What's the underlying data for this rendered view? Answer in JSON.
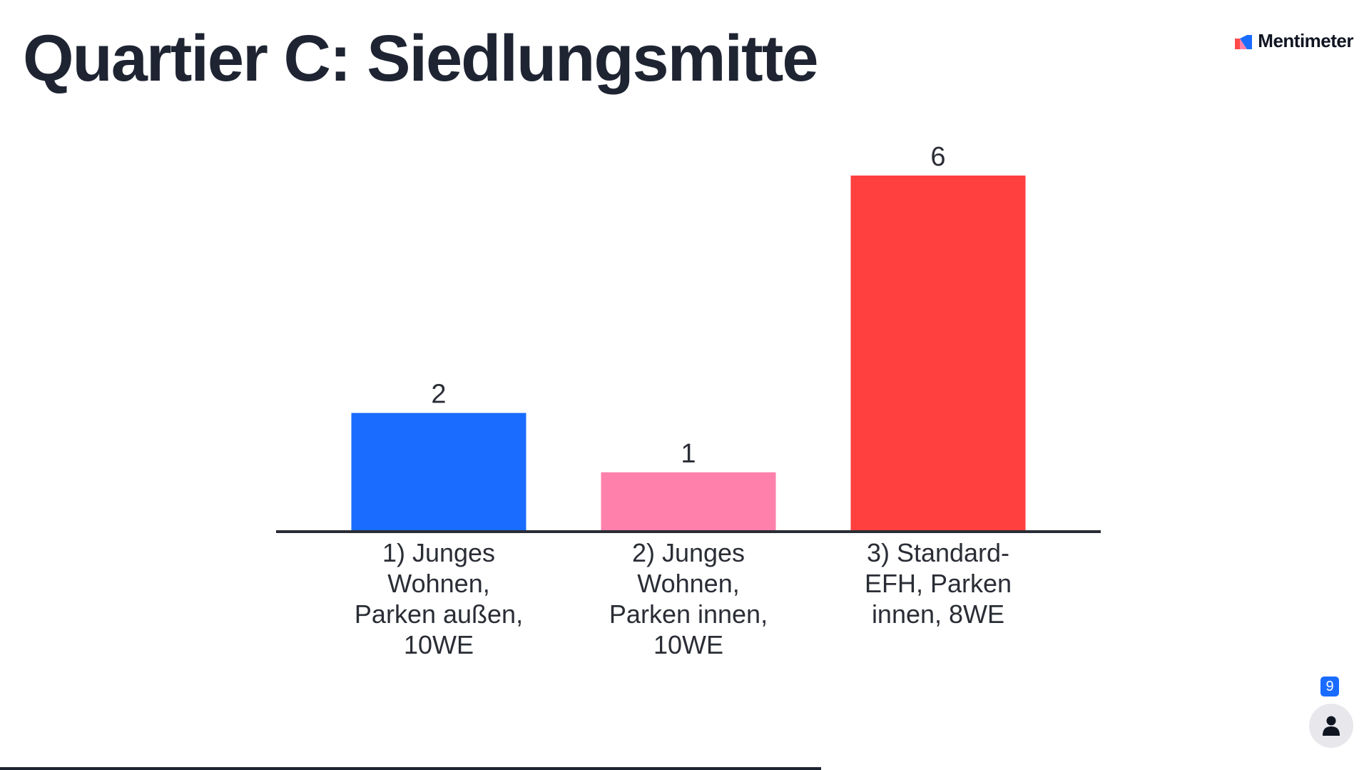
{
  "title": "Quartier C: Siedlungsmitte",
  "brand": {
    "name": "Mentimeter",
    "icon": "mentimeter-logo-icon"
  },
  "participants": {
    "count": "9",
    "icon": "person-icon"
  },
  "presentation_progress": 0.6,
  "colors": {
    "text": "#1f2433",
    "axis": "#2a2d35",
    "badge": "#196cff"
  },
  "chart_data": {
    "type": "bar",
    "categories": [
      [
        "1) Junges",
        "Wohnen,",
        "Parken außen,",
        "10WE"
      ],
      [
        "2) Junges",
        "Wohnen,",
        "Parken innen,",
        "10WE"
      ],
      [
        "3) Standard-",
        "EFH, Parken",
        "innen, 8WE"
      ]
    ],
    "values": [
      2,
      1,
      6
    ],
    "colors": [
      "#196cff",
      "#ff80ab",
      "#ff403f"
    ],
    "ylim": [
      0,
      6
    ],
    "grid": false,
    "legend": "none"
  }
}
